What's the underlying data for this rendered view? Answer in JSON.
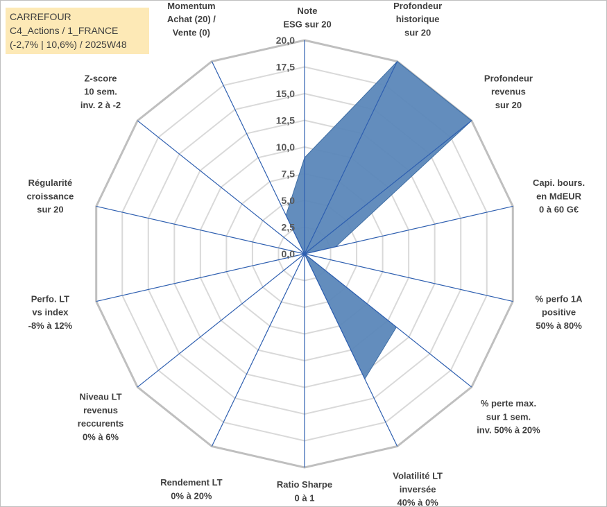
{
  "title_box": {
    "line1": "CARREFOUR",
    "line2": "C4_Actions / 1_FRANCE",
    "line3": "(-2,7% | 10,6%) / 2025W48"
  },
  "chart_data": {
    "type": "radar",
    "title": "CARREFOUR — C4_Actions / 1_FRANCE — (-2,7% | 10,6%) / 2025W48",
    "r_range": [
      0,
      20
    ],
    "r_ticks": [
      "0,0",
      "2,5",
      "5,0",
      "7,5",
      "10,0",
      "12,5",
      "15,0",
      "17,5",
      "20,0"
    ],
    "r_tick_values": [
      0,
      2.5,
      5,
      7.5,
      10,
      12.5,
      15,
      17.5,
      20
    ],
    "grid": true,
    "axes": [
      {
        "label": [
          "Note",
          "ESG sur 20"
        ],
        "value": 9
      },
      {
        "label": [
          "Profondeur",
          "historique",
          "sur 20"
        ],
        "value": 20
      },
      {
        "label": [
          "Profondeur",
          "revenus",
          "sur 20"
        ],
        "value": 20
      },
      {
        "label": [
          "Capi. bours.",
          "en MdEUR",
          "0 à 60 G€"
        ],
        "value": 3
      },
      {
        "label": [
          "% perfo 1A",
          "positive",
          "50% à 80%"
        ],
        "value": 0
      },
      {
        "label": [
          "% perte max.",
          "sur 1 sem.",
          "inv. 50% à 20%"
        ],
        "value": 11
      },
      {
        "label": [
          "Volatilité LT",
          "inversée",
          "40% à 0%"
        ],
        "value": 13
      },
      {
        "label": [
          "Ratio Sharpe",
          "0 à 1"
        ],
        "value": 0
      },
      {
        "label": [
          "Rendement LT",
          "0% à 20%"
        ],
        "value": 0
      },
      {
        "label": [
          "Niveau LT",
          "revenus",
          "reccurents",
          "0% à 6%"
        ],
        "value": 0
      },
      {
        "label": [
          "Perfo. LT",
          "vs index",
          "-8% à 12%"
        ],
        "value": 0
      },
      {
        "label": [
          "Régularité",
          "croissance",
          "sur 20"
        ],
        "value": 0
      },
      {
        "label": [
          "Z-score",
          "10 sem.",
          "inv. 2 à -2"
        ],
        "value": 0
      },
      {
        "label": [
          "Momentum",
          "Achat (20) /",
          "Vente (0)"
        ],
        "value": 4
      }
    ],
    "series": [
      {
        "name": "CARREFOUR",
        "color": "#5b87b9"
      }
    ]
  },
  "colors": {
    "fill": "#5b87b9",
    "fill_stroke": "#3f6ea4",
    "spoke": "#2e5fb0",
    "grid_outer": "#bfbfbf",
    "grid_inner": "#d9d9d9",
    "title_bg": "#fde9b6"
  }
}
